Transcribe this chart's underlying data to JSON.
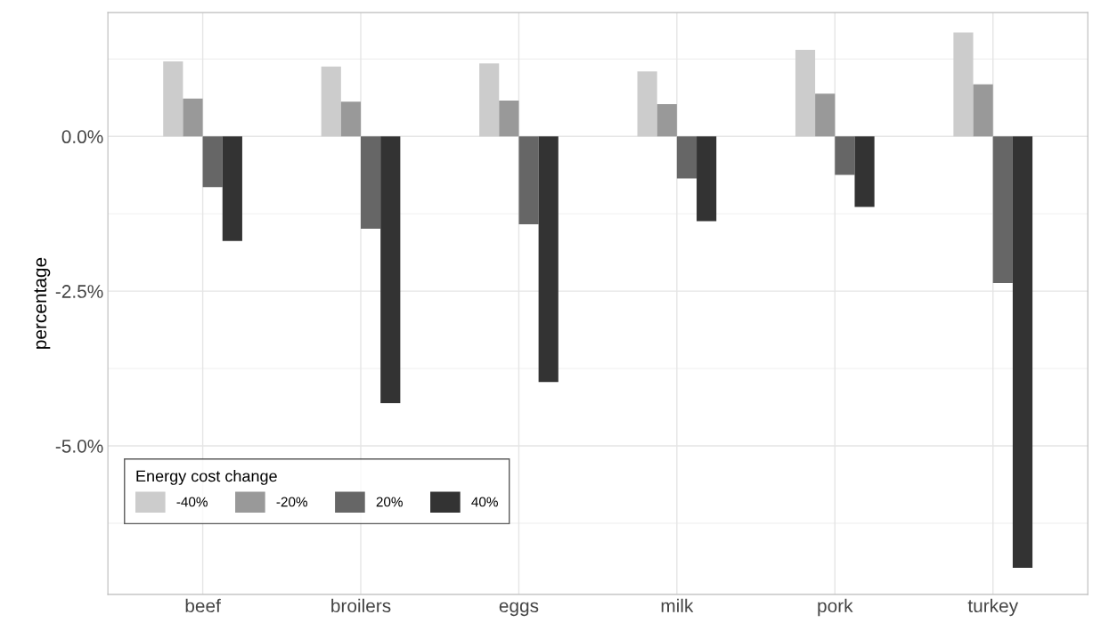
{
  "chart_data": {
    "type": "bar",
    "ylabel": "percentage",
    "legend_title": "Energy cost change",
    "categories": [
      "beef",
      "broilers",
      "eggs",
      "milk",
      "pork",
      "turkey"
    ],
    "series": [
      {
        "name": "-40%",
        "color": "#cccccc",
        "values": [
          1.21,
          1.13,
          1.18,
          1.05,
          1.4,
          1.68
        ]
      },
      {
        "name": "-20%",
        "color": "#999999",
        "values": [
          0.61,
          0.56,
          0.58,
          0.52,
          0.69,
          0.84
        ]
      },
      {
        "name": "20%",
        "color": "#666666",
        "values": [
          -0.82,
          -1.49,
          -1.42,
          -0.68,
          -0.62,
          -2.37
        ]
      },
      {
        "name": "40%",
        "color": "#333333",
        "values": [
          -1.69,
          -4.31,
          -3.97,
          -1.37,
          -1.14,
          -6.97
        ]
      }
    ],
    "ylim": [
      -7.4,
      2.0
    ],
    "yticks": [
      {
        "value": 0,
        "label": "0.0%"
      },
      {
        "value": -2.5,
        "label": "-2.5%"
      },
      {
        "value": -5,
        "label": "-5.0%"
      }
    ],
    "grid": true,
    "legend": "bottom left"
  }
}
